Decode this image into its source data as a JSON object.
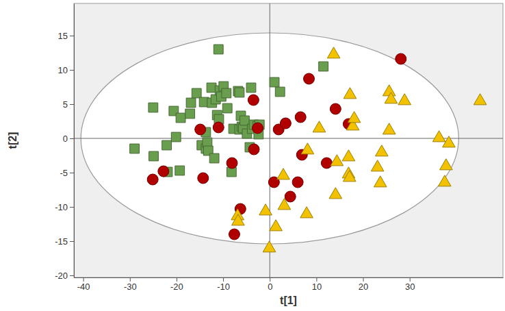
{
  "chart_data": {
    "type": "scatter",
    "x_label": "t[1]",
    "y_label": "t[2]",
    "xlim": [
      -42,
      50
    ],
    "ylim": [
      -20.3,
      19.7
    ],
    "xticks": [
      -40,
      -30,
      -20,
      -10,
      0,
      10,
      20,
      30
    ],
    "yticks": [
      -20,
      -15,
      -10,
      -5,
      0,
      5,
      10,
      15
    ],
    "grid": false,
    "ellipse": {
      "center": [
        0,
        0
      ],
      "radii": [
        40.5,
        15.4
      ]
    },
    "series": [
      {
        "color": "#6a9e4f",
        "marker": "square",
        "x": [
          -29.0,
          -25.0,
          -24.9,
          -22.1,
          -21.9,
          -20.6,
          -20.1,
          -19.3,
          -19.1,
          -17.1,
          -16.9,
          -15.7,
          -14.6,
          -14.1,
          -13.7,
          -13.7,
          -13.4,
          -13.2,
          -12.5,
          -12.4,
          -11.9,
          -11.6,
          -11.3,
          -11.0,
          -10.9,
          -10.7,
          -10.4,
          -9.9,
          -9.3,
          -9.1,
          -8.2,
          -7.8,
          -6.8,
          -6.5,
          -6.2,
          -6.0,
          -5.7,
          -5.4,
          -4.9,
          -4.3,
          -4.0,
          -3.8,
          -3.4,
          -2.6,
          -2.4,
          -2.2,
          1.0,
          2.2,
          11.5,
          -6.5
        ],
        "values": [
          -1.5,
          4.5,
          -2.6,
          -1.0,
          -4.9,
          4.0,
          0.2,
          -4.7,
          3.0,
          3.6,
          5.2,
          6.6,
          -1.0,
          5.3,
          0.9,
          -1.5,
          -0.6,
          -1.8,
          7.4,
          5.2,
          -2.9,
          5.7,
          3.4,
          13.0,
          2.8,
          7.0,
          6.1,
          7.6,
          6.6,
          4.4,
          -4.9,
          1.4,
          6.9,
          1.3,
          3.3,
          1.7,
          1.5,
          2.6,
          0.7,
          -1.3,
          7.4,
          1.4,
          2.0,
          1.8,
          0.6,
          2.0,
          8.2,
          6.8,
          10.5,
          6.7
        ]
      },
      {
        "color": "#b00000",
        "marker": "circle",
        "x": [
          -25.1,
          -22.8,
          -14.9,
          -14.3,
          -11.0,
          -8.1,
          -6.3,
          -7.6,
          -3.5,
          -3.4,
          -2.6,
          0.9,
          1.9,
          3.4,
          6.6,
          6.9,
          4.4,
          6.0,
          8.4,
          12.2,
          14.1,
          16.9,
          28.1
        ],
        "values": [
          -6.0,
          -4.8,
          1.3,
          -5.8,
          1.6,
          -3.6,
          -10.3,
          -14.0,
          5.6,
          -1.6,
          1.5,
          -6.4,
          1.3,
          2.2,
          3.1,
          -2.4,
          -8.5,
          -6.4,
          8.7,
          -3.6,
          4.3,
          2.1,
          11.6
        ]
      },
      {
        "color": "#f2c200",
        "marker": "triangle",
        "x": [
          13.7,
          10.6,
          8.1,
          2.9,
          3.1,
          -0.9,
          1.3,
          -0.1,
          -6.9,
          -6.8,
          7.9,
          14.4,
          14.1,
          17.2,
          17.8,
          18.1,
          16.9,
          16.9,
          17.1,
          24.0,
          23.1,
          23.7,
          25.6,
          25.6,
          26.0,
          28.9,
          36.3,
          38.4,
          37.5,
          37.8,
          45.1
        ],
        "values": [
          12.4,
          1.6,
          -1.6,
          -5.3,
          -9.7,
          -10.5,
          -12.8,
          -15.9,
          -11.2,
          -12.0,
          -10.9,
          -3.3,
          -8.1,
          6.5,
          1.9,
          3.0,
          -2.6,
          -5.1,
          -5.6,
          -1.9,
          -4.1,
          -6.4,
          1.3,
          6.9,
          5.8,
          5.6,
          0.2,
          -0.6,
          -6.3,
          -3.9,
          5.6
        ]
      }
    ]
  }
}
